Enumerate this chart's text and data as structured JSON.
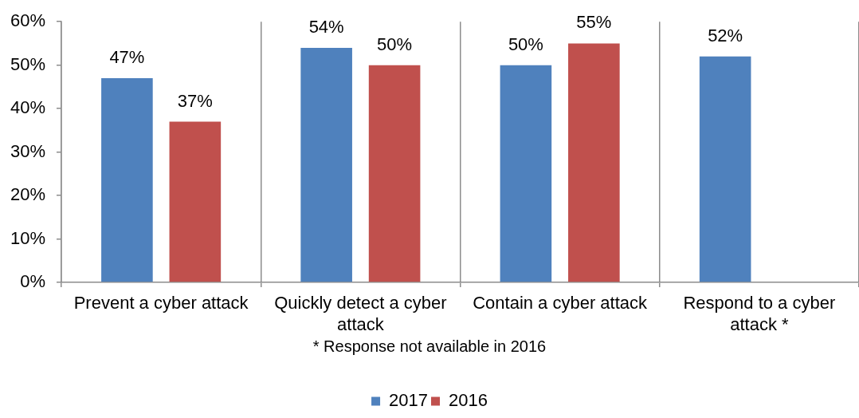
{
  "chart_data": {
    "type": "bar",
    "categories": [
      "Prevent a cyber attack",
      "Quickly detect a cyber attack",
      "Contain a cyber attack",
      "Respond to a cyber attack *"
    ],
    "series": [
      {
        "name": "2017",
        "color": "#4f81bd",
        "values": [
          47,
          54,
          50,
          52
        ],
        "value_labels": [
          "47%",
          "54%",
          "50%",
          "52%"
        ]
      },
      {
        "name": "2016",
        "color": "#c0504d",
        "values": [
          37,
          50,
          55,
          null
        ],
        "value_labels": [
          "37%",
          "50%",
          "55%",
          null
        ]
      }
    ],
    "ylim": [
      0,
      60
    ],
    "yticks": [
      {
        "value": 0,
        "label": "0%"
      },
      {
        "value": 10,
        "label": "10%"
      },
      {
        "value": 20,
        "label": "20%"
      },
      {
        "value": 30,
        "label": "30%"
      },
      {
        "value": 40,
        "label": "40%"
      },
      {
        "value": 50,
        "label": "50%"
      },
      {
        "value": 60,
        "label": "60%"
      }
    ],
    "grid": "x",
    "legend": "bottom",
    "annotations": [
      "* Response not available in 2016"
    ]
  }
}
